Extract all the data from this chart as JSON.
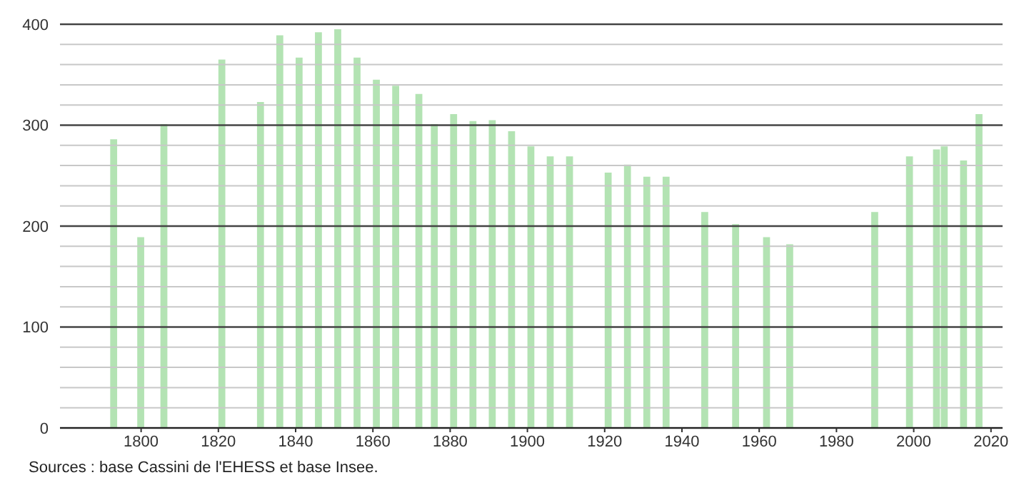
{
  "chart_data": {
    "type": "bar",
    "x": [
      1793,
      1800,
      1806,
      1821,
      1831,
      1836,
      1841,
      1846,
      1851,
      1856,
      1861,
      1866,
      1872,
      1876,
      1881,
      1886,
      1891,
      1896,
      1901,
      1906,
      1911,
      1921,
      1926,
      1931,
      1936,
      1946,
      1954,
      1962,
      1968,
      1990,
      1999,
      2006,
      2008,
      2013,
      2017
    ],
    "values": [
      286,
      189,
      301,
      365,
      323,
      389,
      367,
      392,
      395,
      367,
      345,
      339,
      331,
      301,
      311,
      304,
      305,
      294,
      279,
      269,
      269,
      253,
      261,
      249,
      249,
      214,
      202,
      189,
      182,
      214,
      269,
      276,
      279,
      265,
      311
    ],
    "color": "#b3e3b3",
    "xlim": [
      1779,
      2023
    ],
    "xticks": [
      1800,
      1820,
      1840,
      1860,
      1880,
      1900,
      1920,
      1940,
      1960,
      1980,
      2000,
      2020
    ],
    "ylim": [
      0,
      400
    ],
    "yticks": [
      0,
      {
        "value": 20,
        "label": null
      },
      {
        "value": 40,
        "label": null
      },
      {
        "value": 60,
        "label": null
      },
      {
        "value": 80,
        "label": null
      },
      100,
      {
        "value": 120,
        "label": null
      },
      {
        "value": 140,
        "label": null
      },
      {
        "value": 160,
        "label": null
      },
      {
        "value": 180,
        "label": null
      },
      200,
      {
        "value": 220,
        "label": null
      },
      {
        "value": 240,
        "label": null
      },
      {
        "value": 260,
        "label": null
      },
      {
        "value": 280,
        "label": null
      },
      300,
      {
        "value": 320,
        "label": null
      },
      {
        "value": 340,
        "label": null
      },
      {
        "value": 360,
        "label": null
      },
      {
        "value": 380,
        "label": null
      },
      400
    ],
    "grid": "y",
    "annotations": [
      "Sources : base Cassini de l'EHESS et base Insee."
    ]
  }
}
